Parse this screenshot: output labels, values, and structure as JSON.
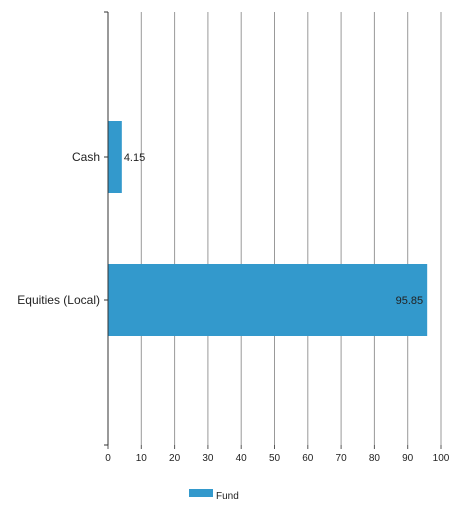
{
  "chart_data": {
    "type": "bar",
    "orientation": "horizontal",
    "categories": [
      "Cash",
      "Equities (Local)"
    ],
    "series": [
      {
        "name": "Fund",
        "values": [
          4.15,
          95.85
        ],
        "color": "#3399cc"
      }
    ],
    "data_labels": [
      "4.15",
      "95.85"
    ],
    "xlim": [
      0,
      100
    ],
    "xticks": [
      0,
      10,
      20,
      30,
      40,
      50,
      60,
      70,
      80,
      90,
      100
    ],
    "grid": "vertical",
    "legend_position": "bottom-center"
  }
}
